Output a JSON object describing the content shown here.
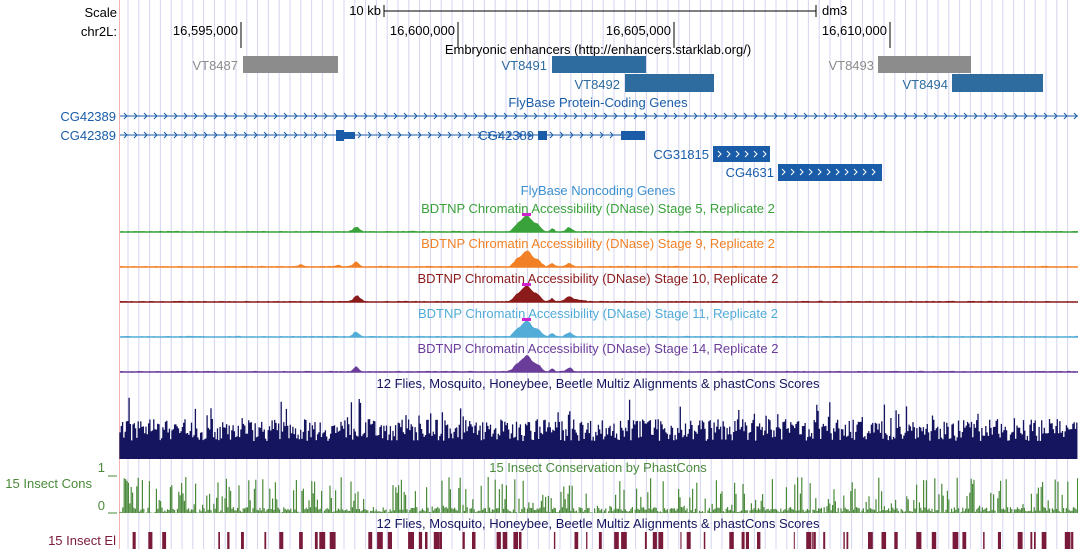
{
  "header": {
    "scale_label": "Scale",
    "scale_bar": "10 kb",
    "assembly": "dm3",
    "chrom_label": "chr2L:",
    "positions": [
      "16,595,000",
      "16,600,000",
      "16,605,000",
      "16,610,000"
    ]
  },
  "tracks": {
    "enhancers": {
      "title": "Embryonic enhancers (http://enhancers.starklab.org/)",
      "items": [
        {
          "name": "VT8487",
          "active": false
        },
        {
          "name": "VT8491",
          "active": true
        },
        {
          "name": "VT8492",
          "active": true
        },
        {
          "name": "VT8493",
          "active": false
        },
        {
          "name": "VT8494",
          "active": true
        }
      ]
    },
    "flybase_coding": {
      "title": "FlyBase Protein-Coding Genes",
      "gene_labels": [
        "CG42389",
        "CG42389",
        "CG42389",
        "CG31815",
        "CG4631"
      ]
    },
    "flybase_noncoding": {
      "title": "FlyBase Noncoding Genes"
    },
    "dnase": [
      {
        "title": "BDTNP Chromatin Accessibility (DNase) Stage 5, Replicate 2",
        "color": "#3aa23a"
      },
      {
        "title": "BDTNP Chromatin Accessibility (DNase) Stage 9, Replicate 2",
        "color": "#f28026"
      },
      {
        "title": "BDTNP Chromatin Accessibility (DNase) Stage 10, Replicate 2",
        "color": "#8b1a1a"
      },
      {
        "title": "BDTNP Chromatin Accessibility (DNase) Stage 11, Replicate 2",
        "color": "#52acd7"
      },
      {
        "title": "BDTNP Chromatin Accessibility (DNase) Stage 14, Replicate 2",
        "color": "#6a3d9a"
      }
    ],
    "multiz": {
      "title": "12 Flies, Mosquito, Honeybee, Beetle Multiz Alignments & phastCons Scores",
      "color": "#14145f"
    },
    "insect_cons": {
      "title": "15 Insect Conservation by PhastCons",
      "left_label": "15 Insect Cons",
      "y_max": "1",
      "y_min": "0",
      "color": "#4a8a3a"
    },
    "insect_el": {
      "title": "12 Flies, Mosquito, Honeybee, Beetle Multiz Alignments & phastCons Scores",
      "left_label": "15 Insect El",
      "color": "#7a1a3a"
    }
  },
  "colors": {
    "gene_blue": "#1a5ca8",
    "enhancer_blue": "#2e6b9e",
    "inactive_gray": "#8c8c8c",
    "guide_line": "#d4d4f0",
    "side_line": "#f4b0b0"
  }
}
